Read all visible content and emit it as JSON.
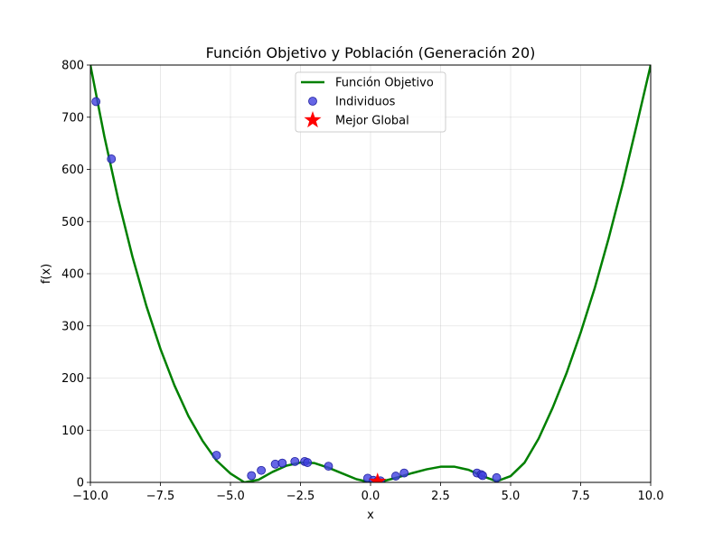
{
  "chart_data": {
    "type": "line",
    "title": "Función Objetivo y Población (Generación 20)",
    "xlabel": "x",
    "ylabel": "f(x)",
    "xlim": [
      -10,
      10
    ],
    "ylim": [
      0,
      800
    ],
    "grid": true,
    "legend_position": "top-center",
    "x_ticks": [
      -10,
      -7.5,
      -5,
      -2.5,
      0,
      2.5,
      5,
      7.5,
      10
    ],
    "x_tick_labels": [
      "−10.0",
      "−7.5",
      "−5.0",
      "−2.5",
      "0.0",
      "2.5",
      "5.0",
      "7.5",
      "10.0"
    ],
    "y_ticks": [
      0,
      100,
      200,
      300,
      400,
      500,
      600,
      700,
      800
    ],
    "y_tick_labels": [
      "0",
      "100",
      "200",
      "300",
      "400",
      "500",
      "600",
      "700",
      "800"
    ],
    "series": [
      {
        "name": "Función Objetivo",
        "kind": "line",
        "color": "#008000",
        "x": [
          -10,
          -9.5,
          -9,
          -8.5,
          -8,
          -7.5,
          -7,
          -6.5,
          -6,
          -5.5,
          -5,
          -4.5,
          -4,
          -3.5,
          -3,
          -2.5,
          -2,
          -1.5,
          -1,
          -0.5,
          0,
          0.5,
          1,
          1.5,
          2,
          2.5,
          3,
          3.5,
          4,
          4.5,
          5,
          5.5,
          6,
          6.5,
          7,
          7.5,
          8,
          8.5,
          9,
          9.5,
          10
        ],
        "y": [
          800,
          663,
          541,
          433,
          338,
          256,
          186,
          127,
          80,
          42,
          17,
          0,
          5,
          20,
          32,
          38,
          37,
          28,
          17,
          6,
          0,
          3,
          10,
          18,
          25,
          30,
          30,
          24,
          12,
          2,
          12,
          38,
          84,
          143,
          210,
          287,
          372,
          468,
          572,
          685,
          800
        ]
      },
      {
        "name": "Individuos",
        "kind": "scatter",
        "color": "#4040e0",
        "x": [
          -9.8,
          -9.25,
          -5.5,
          -4.25,
          -3.9,
          -3.4,
          -3.15,
          -2.7,
          -2.35,
          -2.25,
          -1.5,
          -0.1,
          0.1,
          0.25,
          0.35,
          0.9,
          1.2,
          3.8,
          3.95,
          4.0,
          4.5
        ],
        "y": [
          730,
          620,
          52,
          13,
          23,
          35,
          37,
          40,
          40,
          38,
          31,
          8,
          4,
          2,
          3,
          12,
          18,
          18,
          15,
          13,
          9
        ]
      },
      {
        "name": "Mejor Global",
        "kind": "star",
        "color": "#ff0000",
        "x": [
          0.25
        ],
        "y": [
          1.5
        ]
      }
    ]
  }
}
